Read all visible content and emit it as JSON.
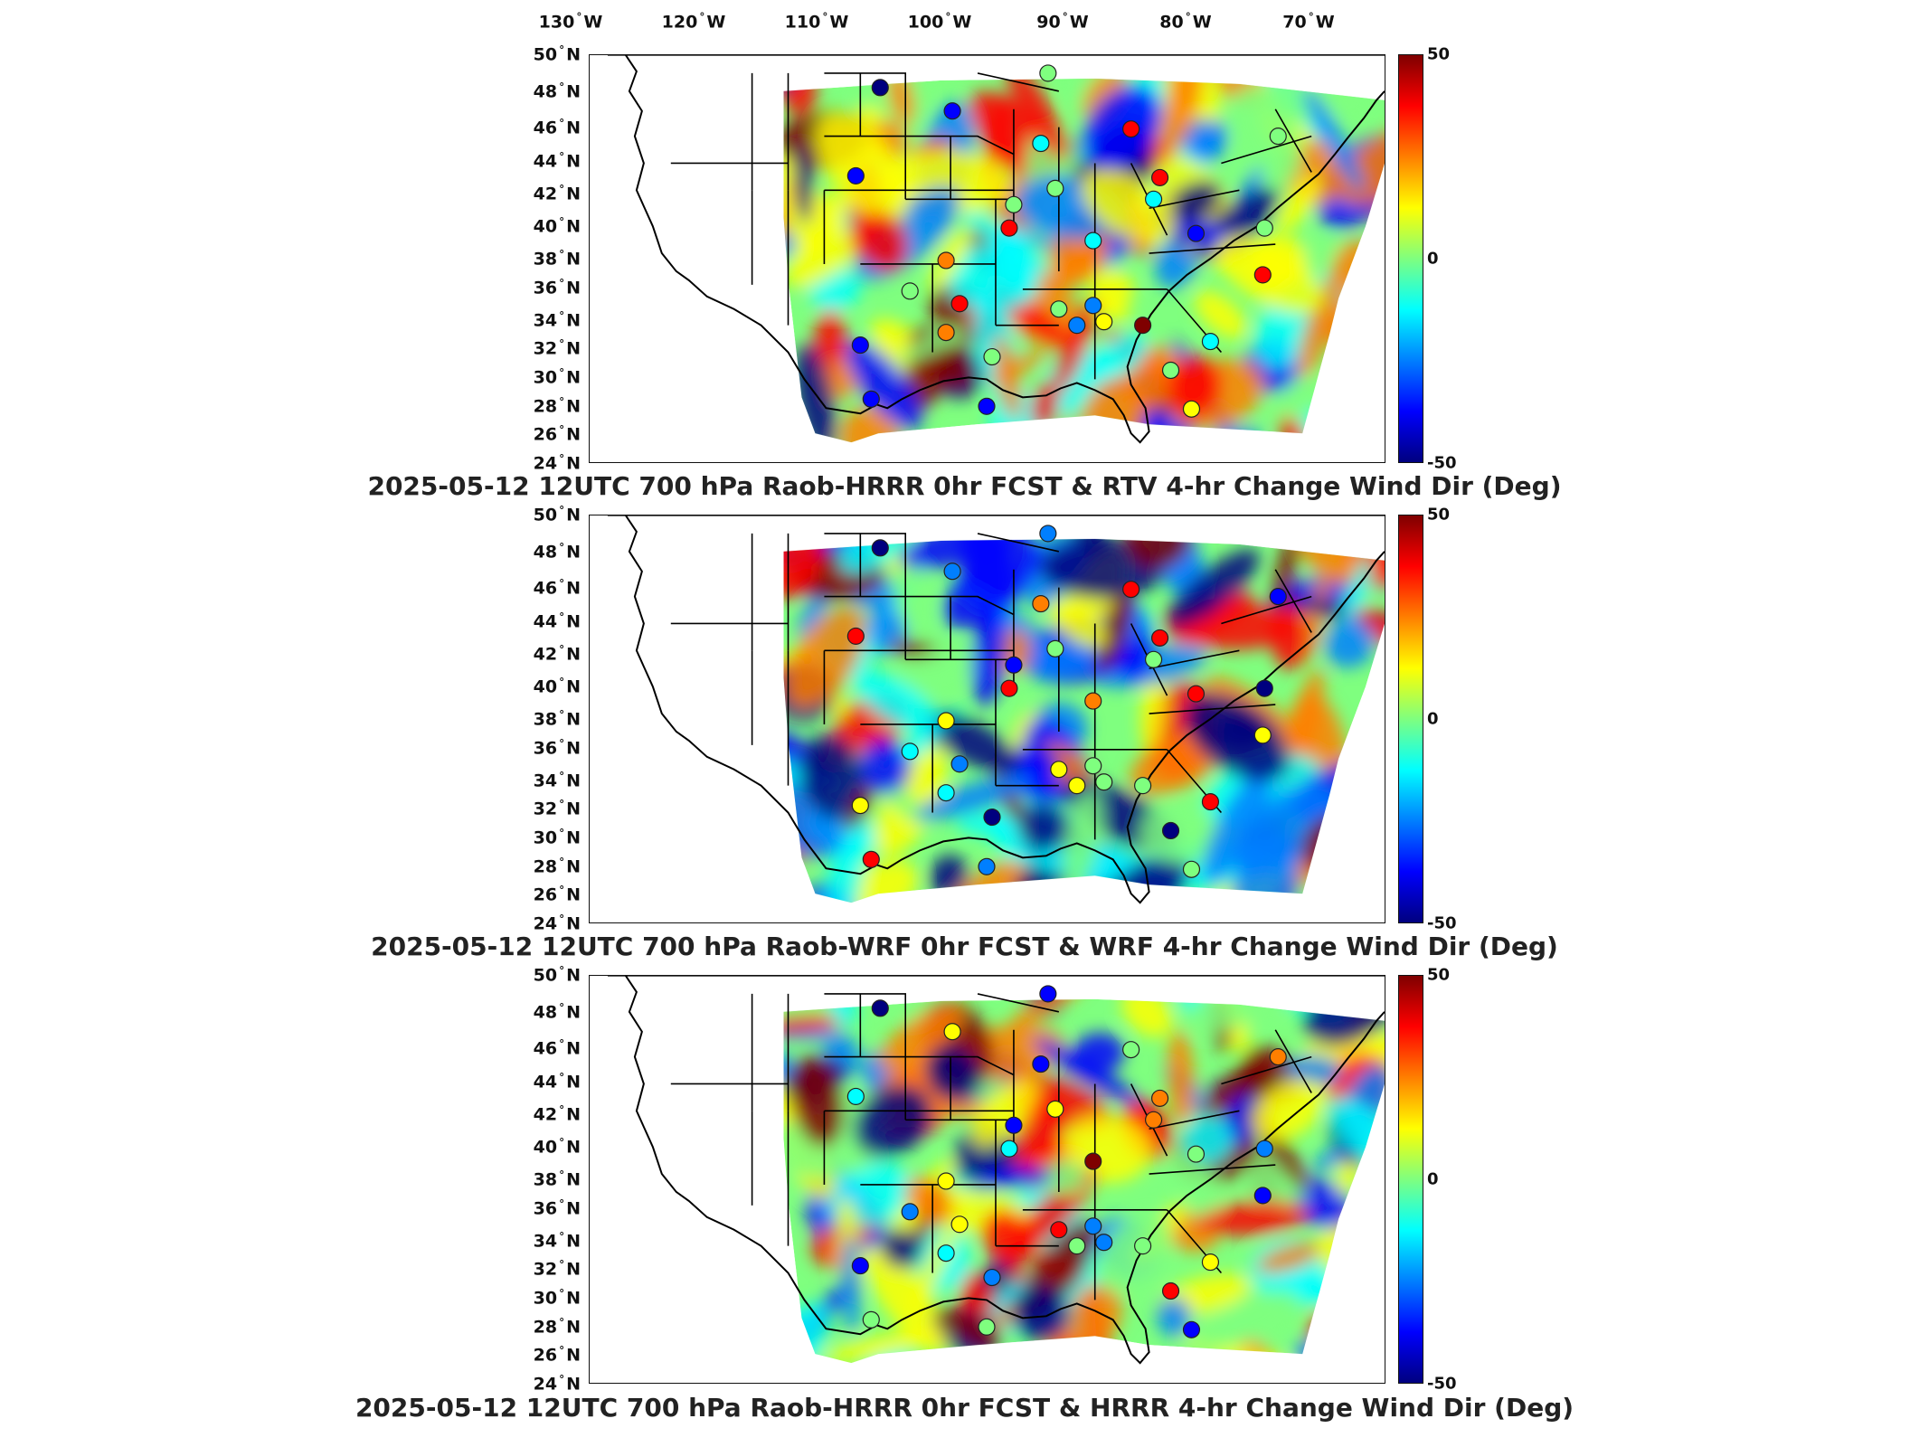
{
  "longitude_labels": [
    "130",
    "120",
    "110",
    "100",
    "90",
    "80",
    "70"
  ],
  "latitude_labels": [
    "50",
    "48",
    "46",
    "44",
    "42",
    "40",
    "38",
    "36",
    "34",
    "32",
    "30",
    "28",
    "26",
    "24"
  ],
  "lon_hemisphere": "W",
  "lat_hemisphere": "N",
  "degree_symbol": "°",
  "colorbar": {
    "max": "50",
    "zero": "0",
    "min": "-50"
  },
  "colormap": [
    "#00007f",
    "#0000ff",
    "#007fff",
    "#00ffff",
    "#7fff7f",
    "#ffff00",
    "#ff7f00",
    "#ff0000",
    "#7f0000"
  ],
  "panels": [
    {
      "title": "2025-05-12 12UTC 700 hPa Raob-HRRR 0hr FCST & RTV 4-hr Change Wind Dir (Deg)"
    },
    {
      "title": "2025-05-12 12UTC 700 hPa Raob-WRF 0hr FCST & WRF 4-hr Change Wind Dir (Deg)"
    },
    {
      "title": "2025-05-12 12UTC 700 hPa Raob-HRRR 0hr FCST & HRRR 4-hr Change Wind Dir (Deg)"
    }
  ]
}
